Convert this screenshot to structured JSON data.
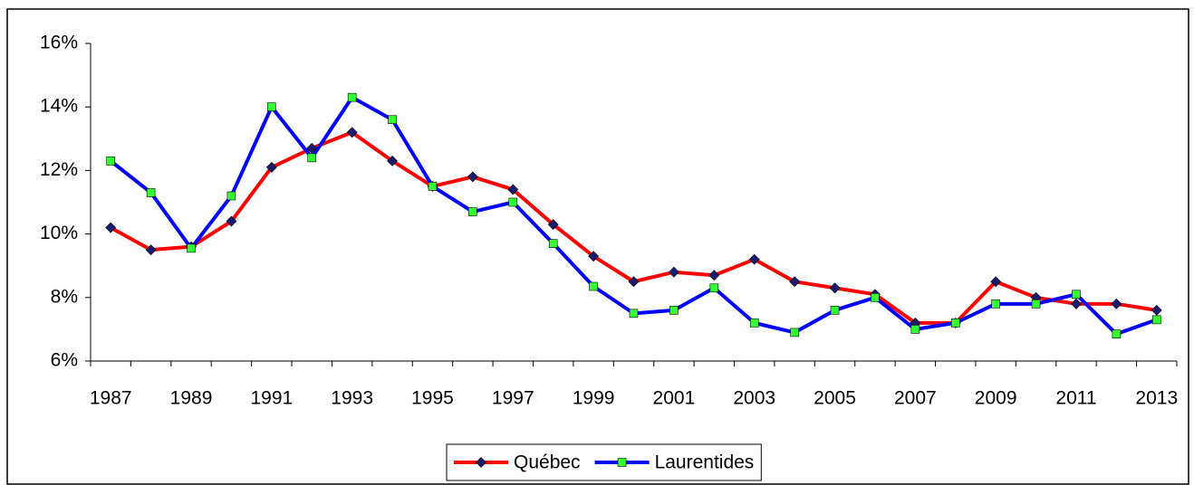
{
  "chart_data": {
    "type": "line",
    "categories": [
      "1987",
      null,
      "1989",
      null,
      "1991",
      null,
      "1993",
      null,
      "1995",
      null,
      "1997",
      null,
      "1999",
      null,
      "2001",
      null,
      "2003",
      null,
      "2005",
      null,
      "2007",
      null,
      "2009",
      null,
      "2011",
      null,
      "2013"
    ],
    "series": [
      {
        "name": "Québec",
        "color": "#ff0000",
        "marker_color": "#1a1a6e",
        "values": [
          10.2,
          9.5,
          9.6,
          10.4,
          12.1,
          12.7,
          13.2,
          12.3,
          11.5,
          11.8,
          11.4,
          10.3,
          9.3,
          8.5,
          8.8,
          8.7,
          9.2,
          8.5,
          8.3,
          8.1,
          7.2,
          7.2,
          8.5,
          8.0,
          7.8,
          7.8,
          7.6
        ]
      },
      {
        "name": "Laurentides",
        "color": "#0000ff",
        "marker_color": "#33ff33",
        "values": [
          12.3,
          11.3,
          9.55,
          11.2,
          14.0,
          12.4,
          14.3,
          13.6,
          11.5,
          10.7,
          11.0,
          9.7,
          8.35,
          7.5,
          7.6,
          8.3,
          7.2,
          6.9,
          7.6,
          8.0,
          7.0,
          7.2,
          7.8,
          7.8,
          8.1,
          6.85,
          7.3
        ]
      }
    ],
    "ylim": [
      6,
      16
    ],
    "yticks": [
      {
        "value": 6,
        "label": "6%"
      },
      {
        "value": 8,
        "label": "8%"
      },
      {
        "value": 10,
        "label": "10%"
      },
      {
        "value": 12,
        "label": "12%"
      },
      {
        "value": 14,
        "label": "14%"
      },
      {
        "value": 16,
        "label": "16%"
      }
    ],
    "grid": false,
    "legend": "bottom"
  }
}
